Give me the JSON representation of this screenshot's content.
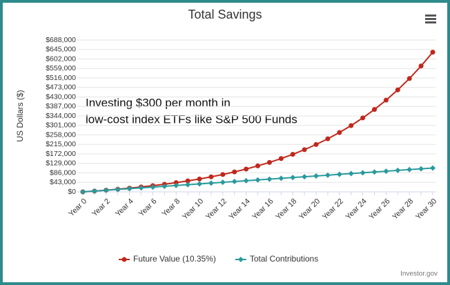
{
  "chart_data": {
    "type": "line",
    "title": "Total Savings",
    "ylabel": "US Dollars ($)",
    "annotation": [
      "Investing $300 per month in",
      "low-cost index ETFs like S&P 500 Funds"
    ],
    "credits": "Investor.gov",
    "categories": [
      "Year 0",
      null,
      "Year 2",
      null,
      "Year 4",
      null,
      "Year 6",
      null,
      "Year 8",
      null,
      "Year 10",
      null,
      "Year 12",
      null,
      "Year 14",
      null,
      "Year 16",
      null,
      "Year 18",
      null,
      "Year 20",
      null,
      "Year 22",
      null,
      "Year 24",
      null,
      "Year 26",
      null,
      "Year 28",
      null,
      "Year 30"
    ],
    "series": [
      {
        "name": "Future Value (10.35%)",
        "color": "#c0281c",
        "marker": "circle",
        "values": [
          0,
          3600,
          7573,
          11957,
          16794,
          22132,
          28023,
          34523,
          41696,
          49612,
          58347,
          67986,
          78623,
          90360,
          103312,
          117605,
          133377,
          150782,
          169988,
          191182,
          214569,
          240377,
          268856,
          300283,
          334962,
          373231,
          415460,
          462060,
          513483,
          570228,
          632847
        ]
      },
      {
        "name": "Total Contributions",
        "color": "#2a9a9c",
        "marker": "diamond",
        "values": [
          0,
          3600,
          7200,
          10800,
          14400,
          18000,
          21600,
          25200,
          28800,
          32400,
          36000,
          39600,
          43200,
          46800,
          50400,
          54000,
          57600,
          61200,
          64800,
          68400,
          72000,
          75600,
          79200,
          82800,
          86400,
          90000,
          93600,
          97200,
          100800,
          104400,
          108000
        ]
      }
    ],
    "ylim": [
      0,
      688000
    ],
    "yticks": [
      {
        "value": 0,
        "label": "$0"
      },
      {
        "value": 43000,
        "label": "$43,000"
      },
      {
        "value": 86000,
        "label": "$86,000"
      },
      {
        "value": 129000,
        "label": "$129,000"
      },
      {
        "value": 172000,
        "label": "$172,000"
      },
      {
        "value": 215000,
        "label": "$215,000"
      },
      {
        "value": 258000,
        "label": "$258,000"
      },
      {
        "value": 301000,
        "label": "$301,000"
      },
      {
        "value": 344000,
        "label": "$344,000"
      },
      {
        "value": 387000,
        "label": "$387,000"
      },
      {
        "value": 430000,
        "label": "$430,000"
      },
      {
        "value": 473000,
        "label": "$473,000"
      },
      {
        "value": 516000,
        "label": "$516,000"
      },
      {
        "value": 559000,
        "label": "$559,000"
      },
      {
        "value": 602000,
        "label": "$602,000"
      },
      {
        "value": 645000,
        "label": "$645,000"
      },
      {
        "value": 688000,
        "label": "$688,000"
      }
    ],
    "grid": true,
    "legend": "bottom"
  }
}
